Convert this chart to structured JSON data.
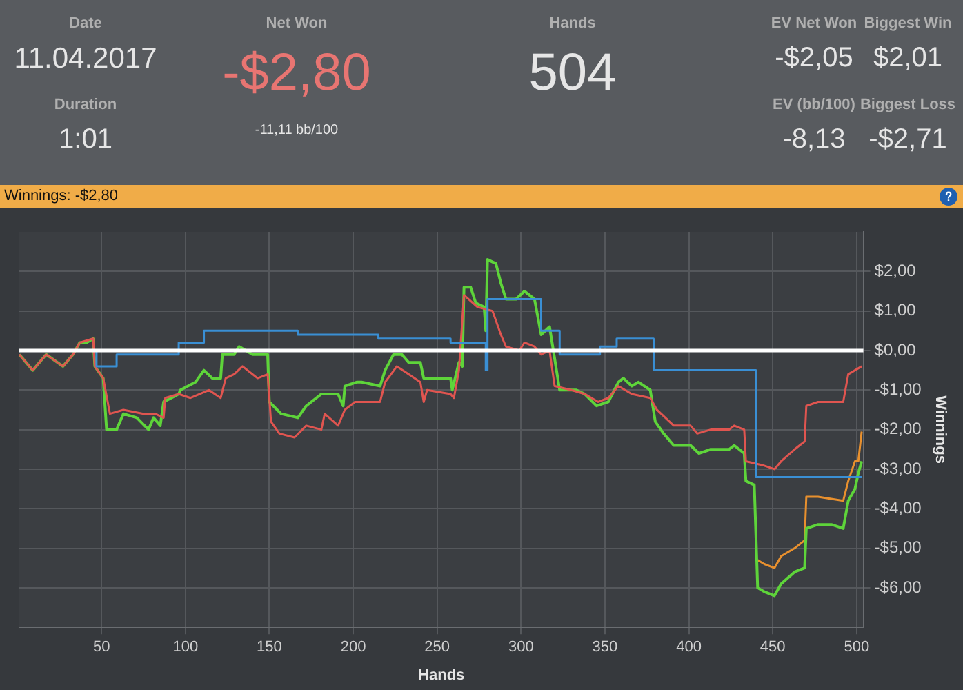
{
  "chart_data": {
    "type": "line",
    "title": "Winnings: -$2,80",
    "xlabel": "Hands",
    "ylabel": "Winnings",
    "annotations": [
      "Date",
      "11.04.2017",
      "Duration",
      "1:01",
      "Net Won",
      "-$2,80",
      "-11,11 bb/100",
      "Hands",
      "504",
      "EV Net Won",
      "-$2,05",
      "Biggest Win",
      "$2,01",
      "EV (bb/100)",
      "-8,13",
      "Biggest Loss",
      "-$2,71"
    ],
    "xlim": [
      1,
      504
    ],
    "xticks": [
      50,
      100,
      150,
      200,
      250,
      300,
      350,
      400,
      450,
      500
    ],
    "ylim": [
      -7,
      3
    ],
    "yticks": [
      {
        "value": 2,
        "label": "$2,00"
      },
      {
        "value": 1,
        "label": "$1,00"
      },
      {
        "value": 0,
        "label": "$0,00"
      },
      {
        "value": -1,
        "label": "-$1,00"
      },
      {
        "value": -2,
        "label": "-$2,00"
      },
      {
        "value": -3,
        "label": "-$3,00"
      },
      {
        "value": -4,
        "label": "-$4,00"
      },
      {
        "value": -5,
        "label": "-$5,00"
      },
      {
        "value": -6,
        "label": "-$6,00"
      }
    ],
    "grid": true,
    "legend": false,
    "marker": "none",
    "ref_lines": [
      {
        "axis": "y",
        "value": 0,
        "color": "#ffffff"
      }
    ],
    "series": [
      {
        "type": "step",
        "color": "#3a8fd4",
        "x": [
          1,
          47,
          59,
          96,
          111,
          167,
          215,
          258,
          279,
          280,
          312,
          323,
          347,
          357,
          379,
          440,
          503
        ],
        "values": [
          0,
          -0.4,
          -0.1,
          0.2,
          0.5,
          0.4,
          0.3,
          0.2,
          -0.5,
          1.3,
          0.5,
          -0.1,
          0.1,
          0.3,
          -0.5,
          -3.2,
          -3.2
        ]
      },
      {
        "color": "#e05550",
        "x": [
          1,
          9,
          17,
          27,
          33,
          37,
          45,
          46,
          51,
          55,
          63,
          75,
          82,
          87,
          88,
          96,
          103,
          114,
          121,
          124,
          129,
          134,
          143,
          149,
          151,
          156,
          165,
          172,
          181,
          183,
          191,
          195,
          201,
          216,
          219,
          226,
          233,
          240,
          242,
          244,
          258,
          260,
          263,
          266,
          274,
          283,
          288,
          291,
          299,
          302,
          308,
          312,
          317,
          320,
          330,
          338,
          346,
          352,
          358,
          366,
          377,
          381,
          391,
          401,
          405,
          413,
          424,
          427,
          433,
          434,
          444,
          451,
          455,
          463,
          469,
          470,
          477,
          488,
          492,
          495,
          499,
          503
        ],
        "values": [
          -0.1,
          -0.5,
          -0.1,
          -0.4,
          -0.1,
          0.2,
          0.3,
          -0.4,
          -0.7,
          -1.6,
          -1.5,
          -1.6,
          -1.6,
          -1.7,
          -1.2,
          -1.1,
          -1.2,
          -1.0,
          -1.2,
          -0.7,
          -0.6,
          -0.4,
          -0.7,
          -0.6,
          -1.8,
          -2.1,
          -2.2,
          -1.9,
          -2.0,
          -1.6,
          -1.9,
          -1.5,
          -1.3,
          -1.3,
          -0.8,
          -0.4,
          -0.6,
          -0.8,
          -1.3,
          -1.0,
          -1.1,
          -1.2,
          -0.5,
          1.4,
          1.1,
          1.0,
          0.4,
          0.1,
          0.0,
          0.2,
          0.1,
          -0.1,
          0.0,
          -0.9,
          -1.0,
          -1.1,
          -1.3,
          -1.2,
          -0.9,
          -1.1,
          -1.2,
          -1.5,
          -1.9,
          -1.9,
          -2.1,
          -2.0,
          -2.0,
          -1.9,
          -2.0,
          -2.8,
          -2.9,
          -3.0,
          -2.8,
          -2.5,
          -2.3,
          -1.4,
          -1.3,
          -1.3,
          -1.3,
          -0.6,
          -0.5,
          -0.4
        ]
      },
      {
        "color": "#5ed43a",
        "x": [
          1,
          9,
          17,
          27,
          33,
          37,
          41,
          45,
          46,
          51,
          53,
          59,
          63,
          71,
          78,
          81,
          85,
          87,
          96,
          97,
          106,
          111,
          116,
          121,
          122,
          129,
          132,
          140,
          149,
          150,
          157,
          167,
          172,
          181,
          191,
          194,
          195,
          202,
          205,
          216,
          219,
          224,
          229,
          233,
          240,
          242,
          258,
          259,
          263,
          265,
          266,
          270,
          273,
          278,
          279,
          280,
          285,
          288,
          291,
          297,
          302,
          308,
          312,
          317,
          320,
          323,
          333,
          338,
          345,
          352,
          358,
          361,
          366,
          370,
          377,
          380,
          385,
          391,
          401,
          406,
          413,
          424,
          427,
          433,
          434,
          439,
          441,
          445,
          451,
          455,
          463,
          469,
          470,
          477,
          485,
          492,
          495,
          499,
          501,
          503
        ],
        "values": [
          -0.1,
          -0.5,
          -0.1,
          -0.4,
          -0.1,
          0.2,
          0.2,
          0.3,
          -0.4,
          -0.7,
          -2.0,
          -2.0,
          -1.6,
          -1.7,
          -2.0,
          -1.7,
          -1.9,
          -1.3,
          -1.1,
          -1.0,
          -0.8,
          -0.5,
          -0.7,
          -0.7,
          -0.1,
          -0.1,
          0.1,
          -0.1,
          -0.1,
          -1.3,
          -1.6,
          -1.7,
          -1.4,
          -1.1,
          -1.1,
          -1.4,
          -0.9,
          -0.8,
          -0.8,
          -0.9,
          -0.5,
          -0.1,
          -0.1,
          -0.3,
          -0.3,
          -0.7,
          -0.7,
          -1.0,
          -0.3,
          -0.4,
          1.6,
          1.6,
          1.2,
          1.1,
          0.5,
          2.3,
          2.2,
          1.7,
          1.3,
          1.3,
          1.5,
          1.3,
          0.4,
          0.6,
          -0.2,
          -1.0,
          -1.0,
          -1.1,
          -1.4,
          -1.3,
          -0.8,
          -0.7,
          -0.9,
          -0.8,
          -1.0,
          -1.8,
          -2.1,
          -2.4,
          -2.4,
          -2.6,
          -2.5,
          -2.5,
          -2.4,
          -2.6,
          -3.3,
          -3.4,
          -6.0,
          -6.1,
          -6.2,
          -5.9,
          -5.6,
          -5.5,
          -4.5,
          -4.4,
          -4.4,
          -4.5,
          -3.8,
          -3.5,
          -3.1,
          -2.8
        ]
      },
      {
        "color": "#e8902e",
        "x": [
          441,
          445,
          451,
          455,
          463,
          469,
          470,
          477,
          492,
          495,
          499,
          501,
          503
        ],
        "values": [
          -5.3,
          -5.4,
          -5.5,
          -5.2,
          -5.0,
          -4.8,
          -3.7,
          -3.7,
          -3.8,
          -3.3,
          -2.8,
          -2.8,
          -2.05
        ]
      }
    ]
  }
}
